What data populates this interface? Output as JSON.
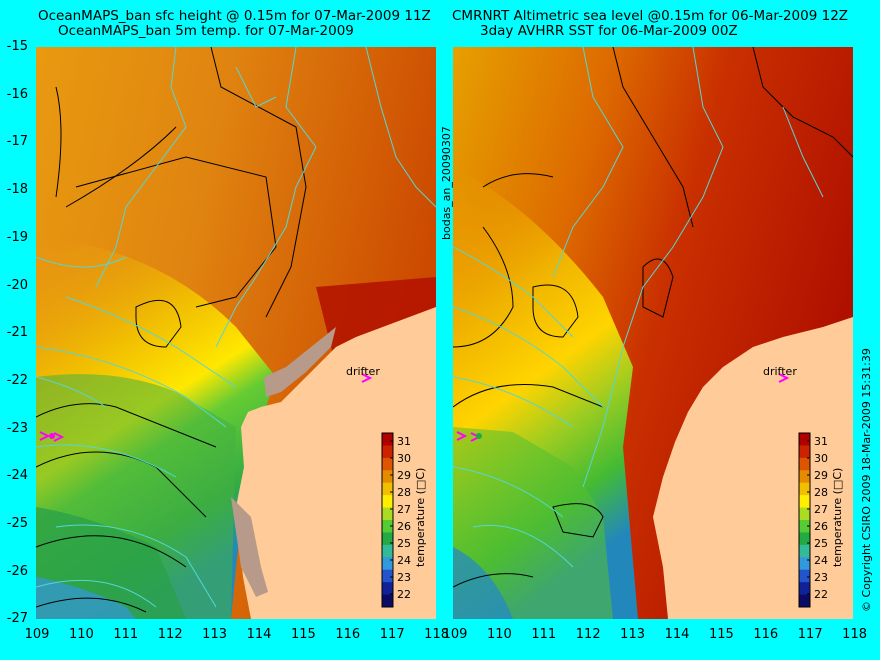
{
  "left_panel": {
    "title_line1": "OceanMAPS_ban sfc height @ 0.15m for 07-Mar-2009 11Z",
    "title_line2": "OceanMAPS_ban 5m temp. for 07-Mar-2009",
    "drifter_label": "drifter"
  },
  "right_panel": {
    "title_line1": "CMRNRT Altimetric sea level  @0.15m  for 06-Mar-2009 12Z",
    "title_line2": "3day AVHRR SST for 06-Mar-2009 00Z",
    "drifter_label": "drifter"
  },
  "center_label": "bodas_an_20090307",
  "right_side_label": "© Copyright CSIRO 2009   18-Mar-2009 15:31:39",
  "y_axis_labels": [
    "-15",
    "-16",
    "-17",
    "-18",
    "-19",
    "-20",
    "-21",
    "-22",
    "-23",
    "-24",
    "-25",
    "-26",
    "-27"
  ],
  "x_axis_labels": [
    "109",
    "110",
    "111",
    "112",
    "113",
    "114",
    "115",
    "116",
    "117",
    "118"
  ],
  "colorbar": {
    "title": "temperature (□C)",
    "ticks": [
      "31",
      "30",
      "29",
      "28",
      "27",
      "26",
      "25",
      "24",
      "23",
      "22"
    ],
    "colors": [
      "#b00000",
      "#cc2200",
      "#dd5500",
      "#e68a00",
      "#f0c000",
      "#ffee00",
      "#aadd22",
      "#55cc33",
      "#22aa44",
      "#33bb99",
      "#3399dd",
      "#2255cc",
      "#112299",
      "#0b0b66"
    ]
  },
  "colors": {
    "land": "#ffcc99",
    "land_unresolved": "#b89a8a",
    "contour": "#000000",
    "bathymetry": "#55d6d6",
    "drifter": "#ff00ff",
    "frame": "#00ffff"
  },
  "map_extent": {
    "lon": [
      109,
      118
    ],
    "lat": [
      -27,
      -15
    ]
  }
}
